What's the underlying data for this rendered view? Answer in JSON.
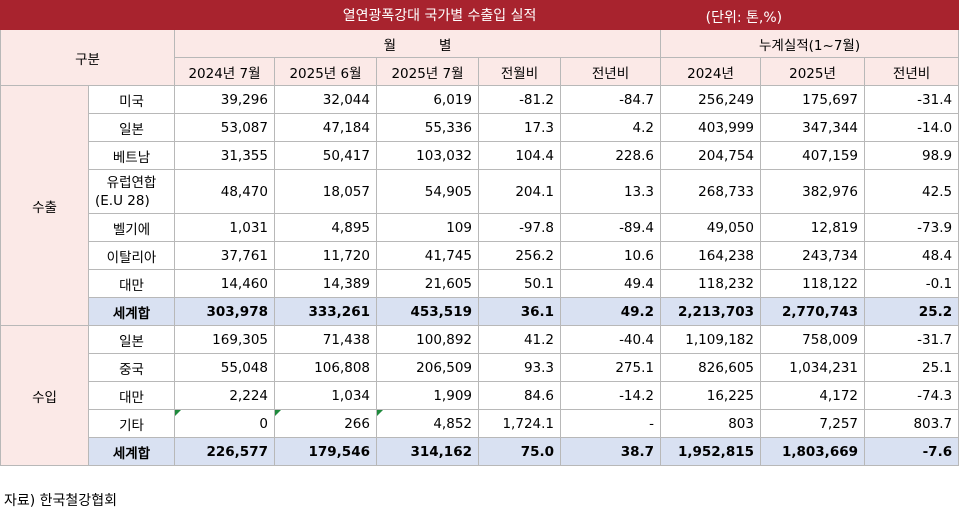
{
  "title": "열연광폭강대 국가별 수출입 실적",
  "unit": "(단위: 톤,%)",
  "header": {
    "category": "구분",
    "monthly": "월          별",
    "cumulative": "누계실적(1~7월)",
    "columns": [
      "2024년 7월",
      "2025년 6월",
      "2025년 7월",
      "전월비",
      "전년비",
      "2024년",
      "2025년",
      "전년비"
    ]
  },
  "export": {
    "label": "수출",
    "rows": [
      {
        "name": "미국",
        "v": [
          "39,296",
          "32,044",
          "6,019",
          "-81.2",
          "-84.7",
          "256,249",
          "175,697",
          "-31.4"
        ]
      },
      {
        "name": "일본",
        "v": [
          "53,087",
          "47,184",
          "55,336",
          "17.3",
          "4.2",
          "403,999",
          "347,344",
          "-14.0"
        ]
      },
      {
        "name": "베트남",
        "v": [
          "31,355",
          "50,417",
          "103,032",
          "104.4",
          "228.6",
          "204,754",
          "407,159",
          "98.9"
        ]
      },
      {
        "name": "유럽연합",
        "name2": "(E.U 28)",
        "v": [
          "48,470",
          "18,057",
          "54,905",
          "204.1",
          "13.3",
          "268,733",
          "382,976",
          "42.5"
        ]
      },
      {
        "name": "벨기에",
        "v": [
          "1,031",
          "4,895",
          "109",
          "-97.8",
          "-89.4",
          "49,050",
          "12,819",
          "-73.9"
        ]
      },
      {
        "name": "이탈리아",
        "v": [
          "37,761",
          "11,720",
          "41,745",
          "256.2",
          "10.6",
          "164,238",
          "243,734",
          "48.4"
        ]
      },
      {
        "name": "대만",
        "v": [
          "14,460",
          "14,389",
          "21,605",
          "50.1",
          "49.4",
          "118,232",
          "118,122",
          "-0.1"
        ]
      }
    ],
    "total": {
      "name": "세계합",
      "v": [
        "303,978",
        "333,261",
        "453,519",
        "36.1",
        "49.2",
        "2,213,703",
        "2,770,743",
        "25.2"
      ]
    }
  },
  "import": {
    "label": "수입",
    "rows": [
      {
        "name": "일본",
        "v": [
          "169,305",
          "71,438",
          "100,892",
          "41.2",
          "-40.4",
          "1,109,182",
          "758,009",
          "-31.7"
        ]
      },
      {
        "name": "중국",
        "v": [
          "55,048",
          "106,808",
          "206,509",
          "93.3",
          "275.1",
          "826,605",
          "1,034,231",
          "25.1"
        ]
      },
      {
        "name": "대만",
        "v": [
          "2,224",
          "1,034",
          "1,909",
          "84.6",
          "-14.2",
          "16,225",
          "4,172",
          "-74.3"
        ]
      },
      {
        "name": "기타",
        "v": [
          "0",
          "266",
          "4,852",
          "1,724.1",
          "-",
          "803",
          "7,257",
          "803.7"
        ]
      }
    ],
    "total": {
      "name": "세계합",
      "v": [
        "226,577",
        "179,546",
        "314,162",
        "75.0",
        "38.7",
        "1,952,815",
        "1,803,669",
        "-7.6"
      ]
    }
  },
  "source": "자료) 한국철강협회"
}
